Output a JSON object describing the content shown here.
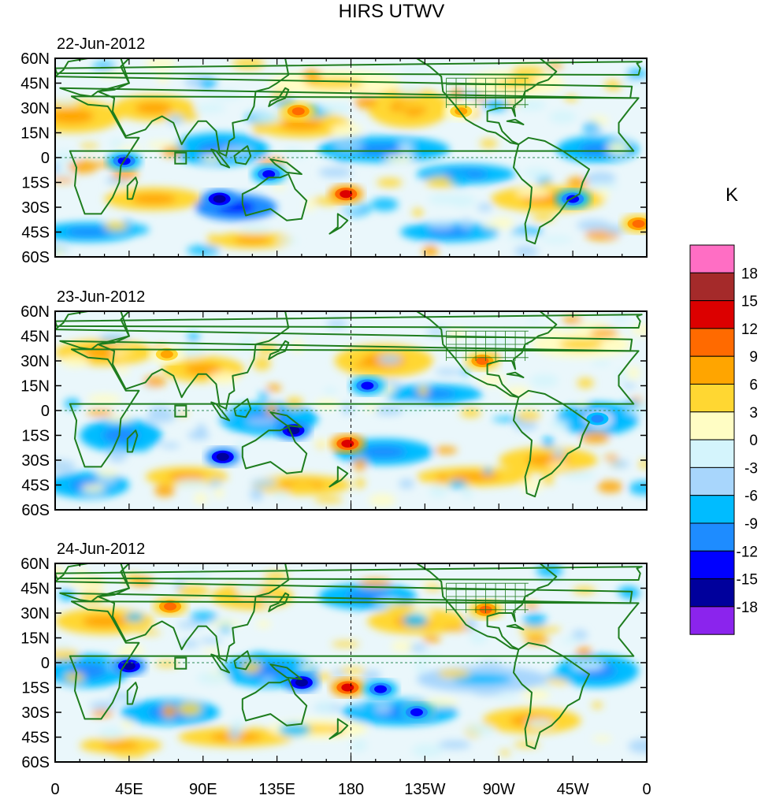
{
  "chart_data": {
    "type": "heatmap",
    "title": "HIRS UTWV",
    "units": "K",
    "lon_ticks": [
      "0",
      "45E",
      "90E",
      "135E",
      "180",
      "135W",
      "90W",
      "45W",
      "0"
    ],
    "lat_ticks": [
      "60N",
      "45N",
      "30N",
      "15N",
      "0",
      "15S",
      "30S",
      "45S",
      "60S"
    ],
    "lon_range": [
      0,
      360
    ],
    "lat_range": [
      -60,
      60
    ],
    "panels": [
      {
        "date": "22-Jun-2012"
      },
      {
        "date": "23-Jun-2012"
      },
      {
        "date": "24-Jun-2012"
      }
    ],
    "colorbar": {
      "labels": [
        "18",
        "15",
        "12",
        "9",
        "6",
        "3",
        "0",
        "-3",
        "-6",
        "-9",
        "-12",
        "-15",
        "-18"
      ],
      "colors": [
        "#ff6ec4",
        "#a52a2a",
        "#dc0000",
        "#ff6a00",
        "#ffa500",
        "#ffd732",
        "#fffdc4",
        "#d4f4fc",
        "#a8d6fc",
        "#00bcff",
        "#1e8cff",
        "#0000ff",
        "#00009c",
        "#8b24ed"
      ]
    },
    "features": {
      "panel_1": [
        {
          "lon": 177,
          "lat": -22,
          "value": 15
        },
        {
          "lon": 148,
          "lat": 28,
          "value": 12
        },
        {
          "lon": 247,
          "lat": 28,
          "value": 9
        },
        {
          "lon": 42,
          "lat": -2,
          "value": -12
        },
        {
          "lon": 130,
          "lat": -10,
          "value": -12
        },
        {
          "lon": 100,
          "lat": -25,
          "value": -15
        },
        {
          "lon": 315,
          "lat": -25,
          "value": -12
        },
        {
          "lon": 355,
          "lat": -40,
          "value": 12
        }
      ],
      "panel_2": [
        {
          "lon": 178,
          "lat": -20,
          "value": 15
        },
        {
          "lon": 260,
          "lat": 30,
          "value": 12
        },
        {
          "lon": 68,
          "lat": 34,
          "value": 9
        },
        {
          "lon": 102,
          "lat": -28,
          "value": -15
        },
        {
          "lon": 145,
          "lat": -12,
          "value": -15
        },
        {
          "lon": 190,
          "lat": 15,
          "value": -12
        },
        {
          "lon": 330,
          "lat": -5,
          "value": -9
        }
      ],
      "panel_3": [
        {
          "lon": 178,
          "lat": -15,
          "value": 15
        },
        {
          "lon": 70,
          "lat": 34,
          "value": 12
        },
        {
          "lon": 262,
          "lat": 32,
          "value": 12
        },
        {
          "lon": 45,
          "lat": -2,
          "value": -15
        },
        {
          "lon": 150,
          "lat": -12,
          "value": -15
        },
        {
          "lon": 198,
          "lat": -16,
          "value": -12
        },
        {
          "lon": 220,
          "lat": -30,
          "value": -12
        }
      ]
    }
  }
}
